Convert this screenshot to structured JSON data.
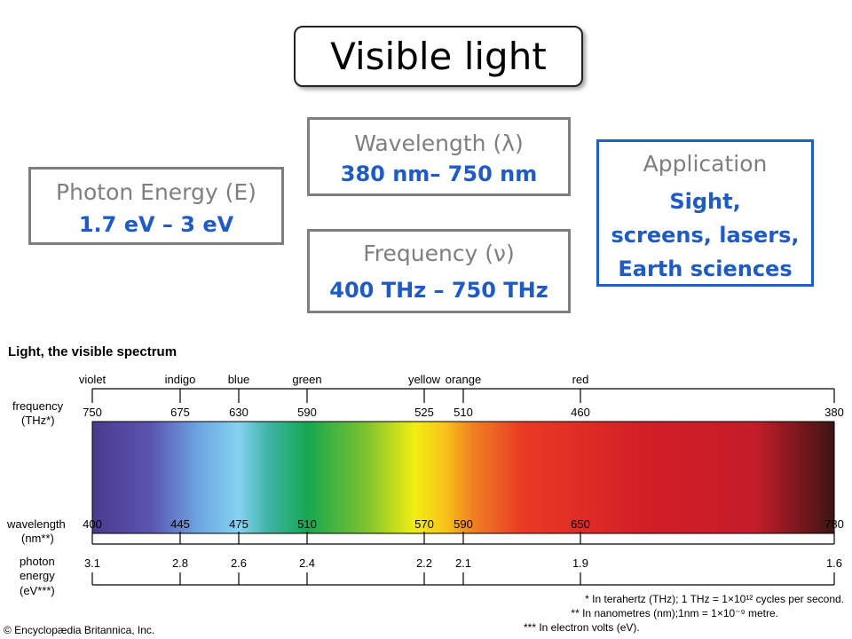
{
  "title": "Visible light",
  "energy": {
    "label": "Photon Energy (E)",
    "value": "1.7 eV – 3 eV"
  },
  "wavelength": {
    "label": "Wavelength (λ)",
    "value": "380 nm– 750 nm"
  },
  "frequency": {
    "label": "Frequency (ν)",
    "value": "400 THz – 750 THz"
  },
  "application": {
    "label": "Application",
    "lines": [
      "Sight,",
      "screens, lasers,",
      "Earth sciences"
    ]
  },
  "figure": {
    "title": "Light, the visible spectrum",
    "row_labels": {
      "frequency": [
        "frequency",
        "(THz*)"
      ],
      "wavelength": [
        "wavelength",
        "(nm**)"
      ],
      "energy": [
        "photon",
        "energy",
        "(eV***)"
      ]
    },
    "notes": [
      "* In terahertz (THz); 1 THz = 1×10¹² cycles per second.",
      "** In nanometres (nm);1nm = 1×10⁻⁹ metre.",
      "*** In electron volts (eV)."
    ],
    "credit": "© Encyclopædia Britannica, Inc."
  },
  "chart_data": {
    "type": "spectrum",
    "title": "Light, the visible spectrum",
    "wavelength_range": [
      400,
      780
    ],
    "colors": [
      {
        "name": "violet",
        "wavelength": 400,
        "frequency": "750"
      },
      {
        "name": "indigo",
        "wavelength": 445,
        "frequency": "675"
      },
      {
        "name": "blue",
        "wavelength": 475,
        "frequency": "630"
      },
      {
        "name": "green",
        "wavelength": 510,
        "frequency": "590"
      },
      {
        "name": "yellow",
        "wavelength": 570,
        "frequency": "525"
      },
      {
        "name": "orange",
        "wavelength": 590,
        "frequency": "510"
      },
      {
        "name": "red",
        "wavelength": 650,
        "frequency": "460"
      }
    ],
    "frequency_ticks": [
      {
        "wavelength": 400,
        "label": "750"
      },
      {
        "wavelength": 445,
        "label": "675"
      },
      {
        "wavelength": 475,
        "label": "630"
      },
      {
        "wavelength": 510,
        "label": "590"
      },
      {
        "wavelength": 570,
        "label": "525"
      },
      {
        "wavelength": 590,
        "label": "510"
      },
      {
        "wavelength": 650,
        "label": "460"
      },
      {
        "wavelength": 780,
        "label": "380"
      }
    ],
    "wavelength_ticks": [
      {
        "wavelength": 400,
        "label": "400"
      },
      {
        "wavelength": 445,
        "label": "445"
      },
      {
        "wavelength": 475,
        "label": "475"
      },
      {
        "wavelength": 510,
        "label": "510"
      },
      {
        "wavelength": 570,
        "label": "570"
      },
      {
        "wavelength": 590,
        "label": "590"
      },
      {
        "wavelength": 650,
        "label": "650"
      },
      {
        "wavelength": 780,
        "label": "780"
      }
    ],
    "energy_ticks": [
      {
        "wavelength": 400,
        "label": "3.1"
      },
      {
        "wavelength": 445,
        "label": "2.8"
      },
      {
        "wavelength": 475,
        "label": "2.6"
      },
      {
        "wavelength": 510,
        "label": "2.4"
      },
      {
        "wavelength": 570,
        "label": "2.2"
      },
      {
        "wavelength": 590,
        "label": "2.1"
      },
      {
        "wavelength": 650,
        "label": "1.9"
      },
      {
        "wavelength": 780,
        "label": "1.6"
      }
    ],
    "gradient": [
      {
        "wavelength": 400,
        "color": "#4a3a8c"
      },
      {
        "wavelength": 430,
        "color": "#5a55b0"
      },
      {
        "wavelength": 455,
        "color": "#6ea6e2"
      },
      {
        "wavelength": 475,
        "color": "#86d2f2"
      },
      {
        "wavelength": 490,
        "color": "#3fb4a6"
      },
      {
        "wavelength": 510,
        "color": "#15a850"
      },
      {
        "wavelength": 540,
        "color": "#7cc22e"
      },
      {
        "wavelength": 565,
        "color": "#f2ee12"
      },
      {
        "wavelength": 580,
        "color": "#f7c61a"
      },
      {
        "wavelength": 595,
        "color": "#f08022"
      },
      {
        "wavelength": 620,
        "color": "#ea3a24"
      },
      {
        "wavelength": 680,
        "color": "#d31f26"
      },
      {
        "wavelength": 740,
        "color": "#c41c2a"
      },
      {
        "wavelength": 780,
        "color": "#3c1414"
      }
    ]
  }
}
